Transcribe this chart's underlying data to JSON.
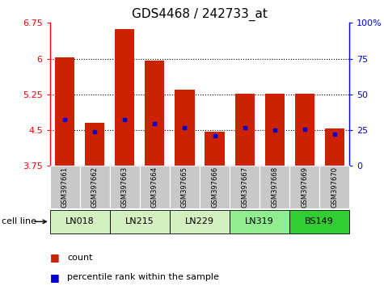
{
  "title": "GDS4468 / 242733_at",
  "samples": [
    "GSM397661",
    "GSM397662",
    "GSM397663",
    "GSM397664",
    "GSM397665",
    "GSM397666",
    "GSM397667",
    "GSM397668",
    "GSM397669",
    "GSM397670"
  ],
  "group_defs": [
    {
      "name": "LN018",
      "indices": [
        0,
        1
      ],
      "color": "#d4f0c0"
    },
    {
      "name": "LN215",
      "indices": [
        2,
        3
      ],
      "color": "#d4f0c0"
    },
    {
      "name": "LN229",
      "indices": [
        4,
        5
      ],
      "color": "#d4f0c0"
    },
    {
      "name": "LN319",
      "indices": [
        6,
        7
      ],
      "color": "#90ee90"
    },
    {
      "name": "BS149",
      "indices": [
        8,
        9
      ],
      "color": "#32cd32"
    }
  ],
  "count_values": [
    6.02,
    4.65,
    6.62,
    5.96,
    5.35,
    4.47,
    5.27,
    5.27,
    5.27,
    4.54
  ],
  "percentile_values": [
    4.73,
    4.46,
    4.73,
    4.63,
    4.55,
    4.38,
    4.56,
    4.5,
    4.52,
    4.41
  ],
  "bar_bottom": 3.75,
  "ylim_left": [
    3.75,
    6.75
  ],
  "ylim_right": [
    0,
    100
  ],
  "yticks_left": [
    3.75,
    4.5,
    5.25,
    6.0,
    6.75
  ],
  "ytick_labels_left": [
    "3.75",
    "4.5",
    "5.25",
    "6",
    "6.75"
  ],
  "yticks_right": [
    0,
    25,
    50,
    75,
    100
  ],
  "ytick_labels_right": [
    "0",
    "25",
    "50",
    "75",
    "100%"
  ],
  "hlines": [
    4.5,
    5.25,
    6.0
  ],
  "bar_color": "#cc2200",
  "percentile_color": "#0000cc",
  "bar_width": 0.65,
  "sample_box_color": "#c8c8c8",
  "legend_items": [
    {
      "label": "count",
      "color": "#cc2200"
    },
    {
      "label": "percentile rank within the sample",
      "color": "#0000cc"
    }
  ],
  "title_fontsize": 11,
  "tick_fontsize": 8,
  "cell_line_label": "cell line"
}
